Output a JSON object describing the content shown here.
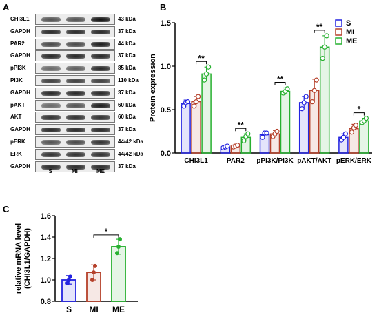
{
  "panels": {
    "a": "A",
    "b": "B",
    "c": "C"
  },
  "western_blot": {
    "rows": [
      {
        "label": "CHI3L1",
        "kda": "43 kDa",
        "intensity": [
          0.7,
          0.7,
          1.0
        ]
      },
      {
        "label": "GAPDH",
        "kda": "37 kDa",
        "intensity": [
          0.9,
          0.9,
          0.9
        ]
      },
      {
        "label": "PAR2",
        "kda": "44 kDa",
        "intensity": [
          0.75,
          0.75,
          0.95
        ]
      },
      {
        "label": "GAPDH",
        "kda": "37 kDa",
        "intensity": [
          0.9,
          0.9,
          0.9
        ]
      },
      {
        "label": "pPI3K",
        "kda": "85 kDa",
        "intensity": [
          0.6,
          0.65,
          0.9
        ]
      },
      {
        "label": "PI3K",
        "kda": "110 kDa",
        "intensity": [
          0.8,
          0.8,
          0.8
        ]
      },
      {
        "label": "GAPDH",
        "kda": "37 kDa",
        "intensity": [
          0.9,
          0.9,
          0.9
        ]
      },
      {
        "label": "pAKT",
        "kda": "60 kDa",
        "intensity": [
          0.6,
          0.7,
          0.95
        ]
      },
      {
        "label": "AKT",
        "kda": "60 kDa",
        "intensity": [
          0.85,
          0.85,
          0.85
        ]
      },
      {
        "label": "GAPDH",
        "kda": "37 kDa",
        "intensity": [
          0.9,
          0.9,
          0.9
        ]
      },
      {
        "label": "pERK",
        "kda": "44/42 kDa",
        "intensity": [
          0.7,
          0.75,
          0.85
        ]
      },
      {
        "label": "ERK",
        "kda": "44/42 kDa",
        "intensity": [
          0.85,
          0.85,
          0.85
        ]
      },
      {
        "label": "GAPDH",
        "kda": "37 kDa",
        "intensity": [
          0.9,
          0.9,
          0.9
        ]
      }
    ],
    "lanes": [
      "S",
      "MI",
      "ME"
    ]
  },
  "colors": {
    "S": "#2323e0",
    "MI": "#b5402a",
    "ME": "#27b030",
    "grid": "#000000"
  },
  "chart_data": [
    {
      "type": "bar",
      "panel": "B",
      "title": "",
      "xlabel": "",
      "ylabel": "Protein expression",
      "ylim": [
        0.0,
        1.5
      ],
      "yticks": [
        "0.0",
        "0.5",
        "1.0",
        "1.5"
      ],
      "categories": [
        "CHI3L1",
        "PAR2",
        "pPI3K/PI3K",
        "pAKT/AKT",
        "pERK/ERK"
      ],
      "series": [
        {
          "name": "S",
          "values": [
            0.57,
            0.07,
            0.21,
            0.58,
            0.18
          ],
          "errors": [
            0.04,
            0.02,
            0.04,
            0.07,
            0.04
          ],
          "points": [
            [
              0.54,
              0.58,
              0.59
            ],
            [
              0.06,
              0.07,
              0.08
            ],
            [
              0.18,
              0.23,
              0.23
            ],
            [
              0.51,
              0.58,
              0.65
            ],
            [
              0.15,
              0.18,
              0.22
            ]
          ]
        },
        {
          "name": "MI",
          "values": [
            0.59,
            0.08,
            0.22,
            0.72,
            0.28
          ],
          "errors": [
            0.06,
            0.02,
            0.04,
            0.13,
            0.05
          ],
          "points": [
            [
              0.54,
              0.59,
              0.65
            ],
            [
              0.07,
              0.08,
              0.09
            ],
            [
              0.19,
              0.22,
              0.25
            ],
            [
              0.59,
              0.72,
              0.84
            ],
            [
              0.24,
              0.29,
              0.32
            ]
          ]
        },
        {
          "name": "ME",
          "values": [
            0.91,
            0.18,
            0.71,
            1.22,
            0.37
          ],
          "errors": [
            0.08,
            0.04,
            0.04,
            0.13,
            0.03
          ],
          "points": [
            [
              0.84,
              0.91,
              0.99
            ],
            [
              0.14,
              0.19,
              0.22
            ],
            [
              0.69,
              0.71,
              0.74
            ],
            [
              1.09,
              1.22,
              1.35
            ],
            [
              0.35,
              0.37,
              0.4
            ]
          ]
        }
      ],
      "significance": [
        "**",
        "**",
        "**",
        "**",
        "*"
      ],
      "legend": "top-right"
    },
    {
      "type": "bar",
      "panel": "C",
      "title": "",
      "xlabel": "",
      "ylabel": "relative mRNA level\n(CHI3L1/GAPDH)",
      "ylabel_lines": [
        "relative mRNA level",
        "(CHI3L1/GAPDH)"
      ],
      "ylim": [
        0.8,
        1.6
      ],
      "yticks": [
        "0.8",
        "1.0",
        "1.2",
        "1.4",
        "1.6"
      ],
      "categories": [
        "S",
        "MI",
        "ME"
      ],
      "values": [
        1.0,
        1.07,
        1.31
      ],
      "errors": [
        0.04,
        0.07,
        0.07
      ],
      "points": [
        [
          0.97,
          1.0,
          1.03
        ],
        [
          1.0,
          1.07,
          1.13
        ],
        [
          1.25,
          1.31,
          1.38
        ]
      ],
      "significance": "*"
    }
  ]
}
